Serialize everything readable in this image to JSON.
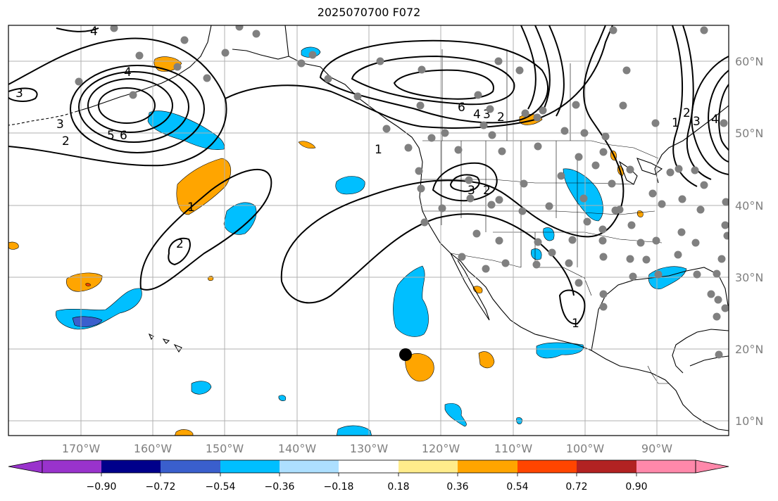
{
  "title": "2025070700 F072",
  "map": {
    "lon_labels": [
      "170°W",
      "160°W",
      "150°W",
      "140°W",
      "130°W",
      "120°W",
      "110°W",
      "100°W",
      "90°W"
    ],
    "lat_labels": [
      "60°N",
      "50°N",
      "40°N",
      "30°N",
      "20°N",
      "10°N"
    ],
    "contour_labels": [
      "4",
      "4",
      "3",
      "3",
      "2",
      "5",
      "6",
      "1",
      "2",
      "1",
      "6",
      "4",
      "3",
      "2",
      "3",
      "2",
      "1",
      "2",
      "3",
      "4",
      "1"
    ],
    "colors": {
      "land_outline": "#000000",
      "grid": "#b0b0b0",
      "station_marker": "#808080",
      "storm_marker": "#000000"
    }
  },
  "colorbar": {
    "tick_labels": [
      "−0.90",
      "−0.72",
      "−0.54",
      "−0.36",
      "−0.18",
      "0.18",
      "0.36",
      "0.54",
      "0.72",
      "0.90"
    ],
    "colors": [
      "#9933cc",
      "#00008b",
      "#3a5fcd",
      "#00bfff",
      "#addfff",
      "#ffffff",
      "#ffec8b",
      "#ffa500",
      "#ff4500",
      "#b22222",
      "#ff88aa"
    ]
  }
}
